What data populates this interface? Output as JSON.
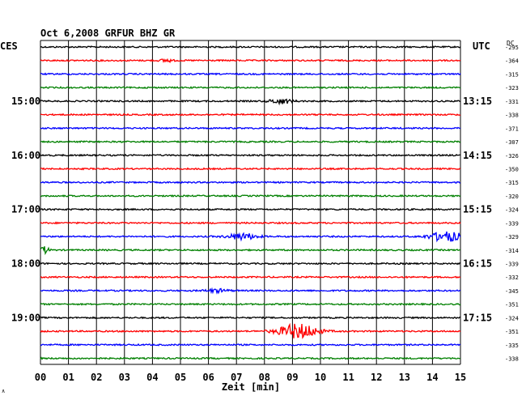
{
  "chart_data": {
    "type": "line",
    "title": "Oct 6,2008   GRFUR BHZ GR",
    "left_axis_label": "CES",
    "right_axis_label": "UTC",
    "offset_header": "DC",
    "xlabel": "Zeit [min]",
    "x_ticks": [
      "00",
      "01",
      "02",
      "03",
      "04",
      "05",
      "06",
      "07",
      "08",
      "09",
      "10",
      "11",
      "12",
      "13",
      "14",
      "15"
    ],
    "xlim": [
      0,
      15
    ],
    "grid": true,
    "left_time_labels": [
      {
        "trace": 4,
        "label": "15:00"
      },
      {
        "trace": 8,
        "label": "16:00"
      },
      {
        "trace": 12,
        "label": "17:00"
      },
      {
        "trace": 16,
        "label": "18:00"
      },
      {
        "trace": 20,
        "label": "19:00"
      }
    ],
    "right_time_labels": [
      {
        "trace": 4,
        "label": "13:15"
      },
      {
        "trace": 8,
        "label": "14:15"
      },
      {
        "trace": 12,
        "label": "15:15"
      },
      {
        "trace": 16,
        "label": "16:15"
      },
      {
        "trace": 20,
        "label": "17:15"
      }
    ],
    "trace_colors": [
      "#000000",
      "#ff0000",
      "#0000ff",
      "#008000"
    ],
    "dc_offsets": [
      "-295",
      "-364",
      "-315",
      "-323",
      "-331",
      "-338",
      "-371",
      "-307",
      "-326",
      "-350",
      "-315",
      "-320",
      "-324",
      "-339",
      "-329",
      "-314",
      "-339",
      "-332",
      "-345",
      "-351",
      "-324",
      "-351",
      "-335",
      "-338"
    ],
    "events": [
      {
        "trace": 1,
        "center_min": 4.5,
        "width_min": 0.4,
        "amplitude": 2
      },
      {
        "trace": 4,
        "center_min": 8.6,
        "width_min": 0.8,
        "amplitude": 3
      },
      {
        "trace": 14,
        "center_min": 7.2,
        "width_min": 1.0,
        "amplitude": 4
      },
      {
        "trace": 14,
        "center_min": 14.5,
        "width_min": 1.2,
        "amplitude": 6
      },
      {
        "trace": 15,
        "center_min": 0.15,
        "width_min": 0.3,
        "amplitude": 4
      },
      {
        "trace": 21,
        "center_min": 9.2,
        "width_min": 1.4,
        "amplitude": 9
      },
      {
        "trace": 18,
        "center_min": 6.3,
        "width_min": 0.8,
        "amplitude": 2
      }
    ],
    "footer_mark": "∧"
  }
}
